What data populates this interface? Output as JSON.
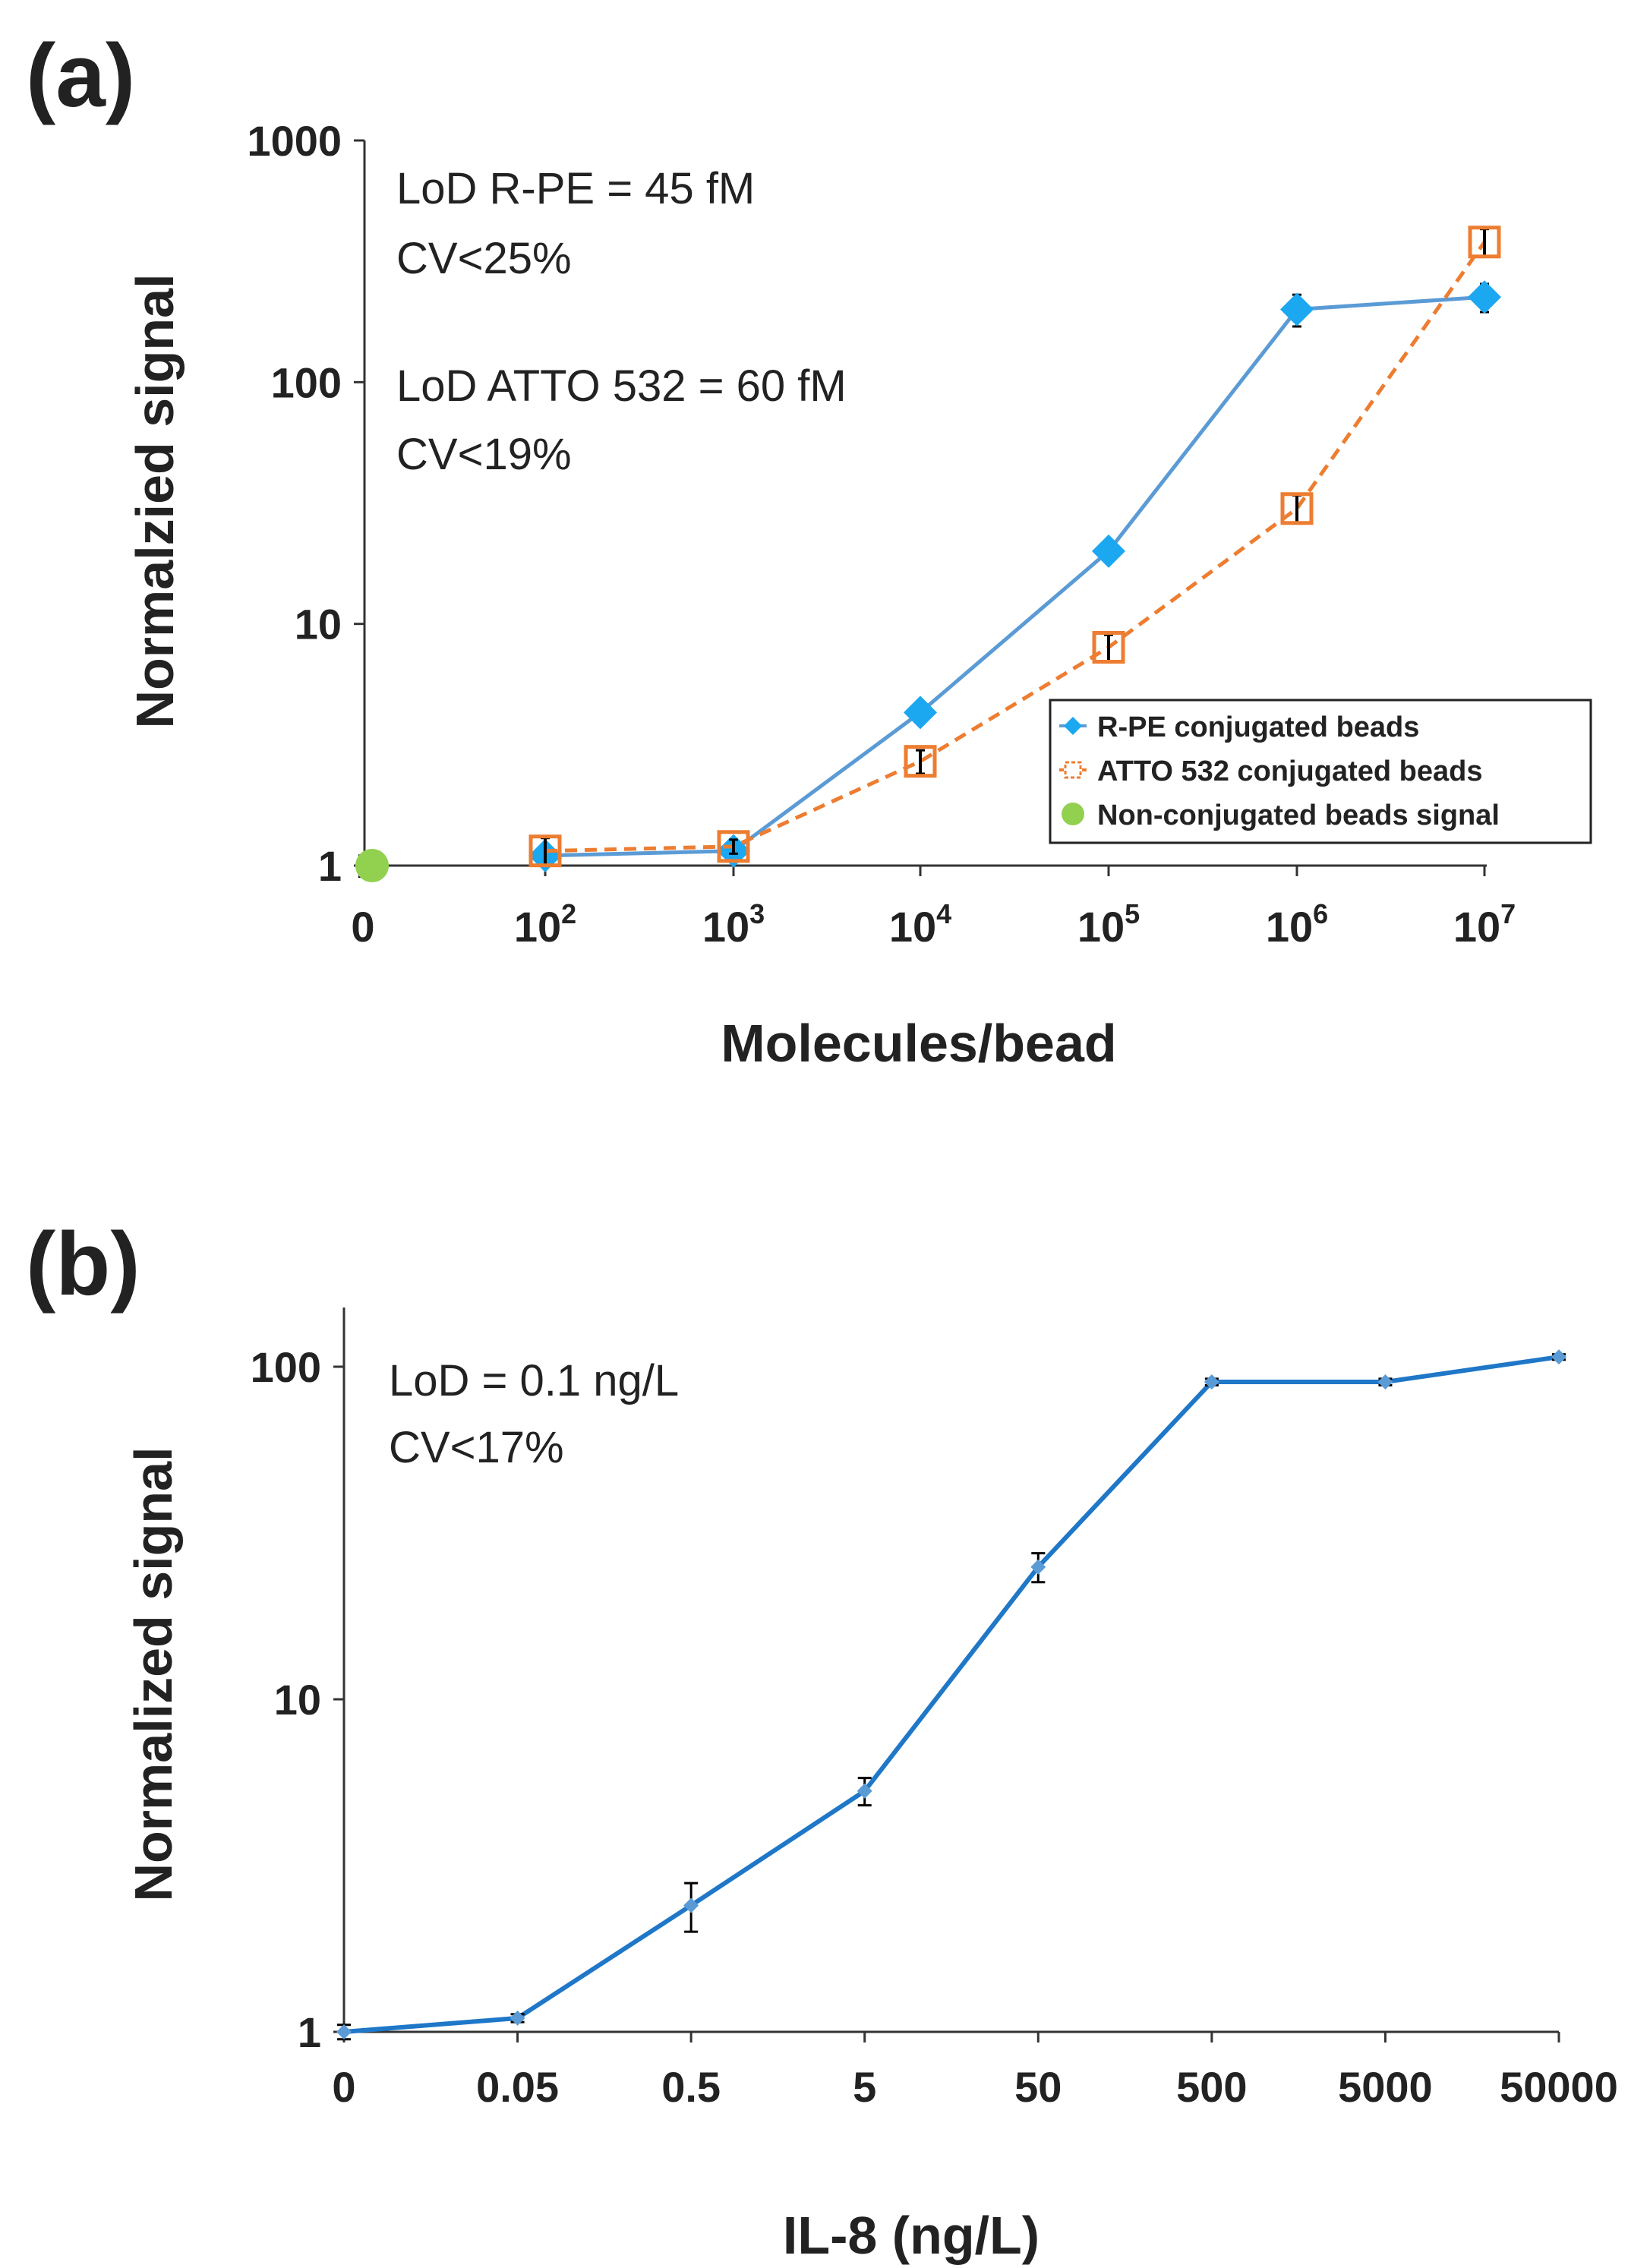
{
  "chart_data": [
    {
      "panel": "(a)",
      "type": "line",
      "xlabel": "Molecules/bead",
      "ylabel": "Normalzied signal",
      "xscale": "log",
      "yscale": "log",
      "ylim": [
        1,
        1000
      ],
      "x_tick_labels": [
        {
          "base": "0",
          "exp": ""
        },
        {
          "base": "10",
          "exp": "2"
        },
        {
          "base": "10",
          "exp": "3"
        },
        {
          "base": "10",
          "exp": "4"
        },
        {
          "base": "10",
          "exp": "5"
        },
        {
          "base": "10",
          "exp": "6"
        },
        {
          "base": "10",
          "exp": "7"
        }
      ],
      "y_tick_labels": [
        "1",
        "10",
        "100",
        "1000"
      ],
      "annotations": [
        "LoD R-PE = 45 fM",
        "CV<25%",
        "LoD ATTO 532 = 60 fM",
        "CV<19%"
      ],
      "legend_position": "lower-right",
      "series": [
        {
          "name": "R-PE conjugated beads",
          "color": "#5b9bd5",
          "marker": "diamond",
          "marker_color": "#1ba8f0",
          "line_style": "solid",
          "x": [
            100,
            1000,
            10000,
            100000,
            1000000,
            10000000
          ],
          "y": [
            1.1,
            1.15,
            4.3,
            20,
            200,
            225
          ],
          "err": [
            0.08,
            0.08,
            0.3,
            1.5,
            30,
            30
          ]
        },
        {
          "name": "ATTO 532 conjugated beads",
          "color": "#ed7d31",
          "marker": "open-square",
          "marker_color": "#ed7d31",
          "line_style": "dashed",
          "x": [
            100,
            1000,
            10000,
            100000,
            1000000,
            10000000
          ],
          "y": [
            1.15,
            1.2,
            2.7,
            8,
            30,
            380
          ],
          "err": [
            0.15,
            0.08,
            0.3,
            1.0,
            4,
            50
          ]
        },
        {
          "name": "Non-conjugated beads signal",
          "color": "#92d050",
          "marker": "circle",
          "marker_color": "#92d050",
          "line_style": "none",
          "x": [
            0
          ],
          "y": [
            1
          ],
          "err": [
            0.1
          ]
        }
      ]
    },
    {
      "panel": "(b)",
      "type": "line",
      "xlabel": "IL-8 (ng/L)",
      "ylabel": "Normalized signal",
      "yscale": "log",
      "ylim": [
        1,
        100
      ],
      "categories": [
        "0",
        "0.05",
        "0.5",
        "5",
        "50",
        "500",
        "5000",
        "50000"
      ],
      "y_tick_labels": [
        "1",
        "10",
        "100"
      ],
      "annotations": [
        "LoD = 0.1 ng/L",
        "CV<17%"
      ],
      "series": [
        {
          "color": "#1f77c8",
          "values": [
            1,
            1.1,
            2.4,
            5.3,
            25,
            90,
            90,
            107
          ],
          "err": [
            0.05,
            0.03,
            0.4,
            0.5,
            2.5,
            2,
            2,
            2
          ]
        }
      ]
    }
  ]
}
